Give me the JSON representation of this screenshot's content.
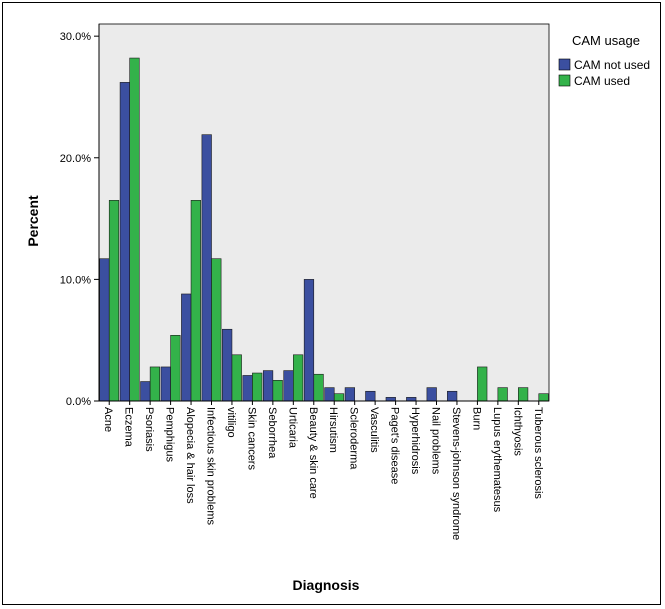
{
  "chart_data": {
    "type": "bar",
    "title": "",
    "xlabel": "Diagnosis",
    "ylabel": "Percent",
    "ylim": [
      0,
      0.31
    ],
    "y_ticks": [
      {
        "value": 0,
        "label": "0.0%"
      },
      {
        "value": 0.1,
        "label": "10.0%"
      },
      {
        "value": 0.2,
        "label": "20.0%"
      },
      {
        "value": 0.3,
        "label": "30.0%"
      }
    ],
    "grid": false,
    "legend_position": "top-right",
    "legend_title": "CAM usage",
    "categories": [
      "Acne",
      "Eczema",
      "Psoriasis",
      "Pemphigus",
      "Alopecia & hair loss",
      "Infectious skin problems",
      "vitiligo",
      "Skin cancers",
      "Seborrhea",
      "Urticaria",
      "Beauty & skin care",
      "Hirsutism",
      "Scleroderma",
      "Vasculitis",
      "Paget's disease",
      "Hyperhidrosis",
      "Nail problems",
      "Stevens-johnson syndrome",
      "Burn",
      "Lupus erythematesus",
      "Ichthyosis",
      "Tuberous sclerosis"
    ],
    "series": [
      {
        "name": "CAM not used",
        "color": "#3b4fa0",
        "values": [
          0.117,
          0.262,
          0.016,
          0.028,
          0.088,
          0.219,
          0.059,
          0.021,
          0.025,
          0.025,
          0.1,
          0.011,
          0.011,
          0.008,
          0.003,
          0.003,
          0.011,
          0.008,
          0,
          0,
          0,
          0
        ]
      },
      {
        "name": "CAM used",
        "color": "#33b24a",
        "values": [
          0.165,
          0.282,
          0.028,
          0.054,
          0.165,
          0.117,
          0.038,
          0.023,
          0.017,
          0.038,
          0.022,
          0.006,
          0,
          0,
          0,
          0,
          0,
          0,
          0.028,
          0.011,
          0.011,
          0.006
        ]
      }
    ]
  },
  "colors": {
    "plot_background": "#ebebeb",
    "not_used": "#3b4fa0",
    "used": "#33b24a"
  }
}
